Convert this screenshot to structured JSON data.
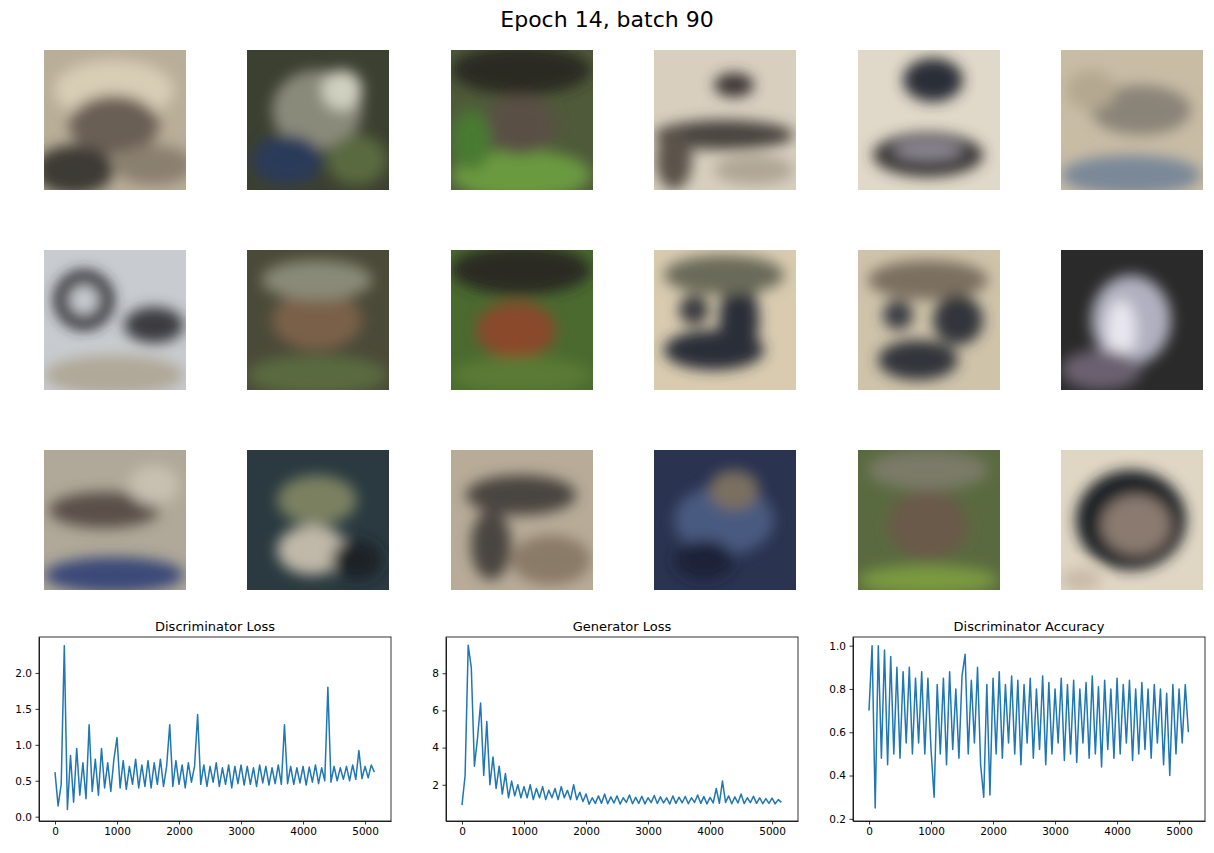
{
  "title": "Epoch 14, batch 90",
  "chart_data": [
    {
      "type": "line",
      "title": "Discriminator Loss",
      "color": "#1f77b4",
      "x": [
        0,
        50,
        100,
        150,
        200,
        250,
        300,
        350,
        400,
        450,
        500,
        550,
        600,
        650,
        700,
        750,
        800,
        850,
        900,
        950,
        1000,
        1050,
        1100,
        1150,
        1200,
        1250,
        1300,
        1350,
        1400,
        1450,
        1500,
        1550,
        1600,
        1650,
        1700,
        1750,
        1800,
        1850,
        1900,
        1950,
        2000,
        2050,
        2100,
        2150,
        2200,
        2250,
        2300,
        2350,
        2400,
        2450,
        2500,
        2550,
        2600,
        2650,
        2700,
        2750,
        2800,
        2850,
        2900,
        2950,
        3000,
        3050,
        3100,
        3150,
        3200,
        3250,
        3300,
        3350,
        3400,
        3450,
        3500,
        3550,
        3600,
        3650,
        3700,
        3750,
        3800,
        3850,
        3900,
        3950,
        4000,
        4050,
        4100,
        4150,
        4200,
        4250,
        4300,
        4350,
        4400,
        4450,
        4500,
        4550,
        4600,
        4650,
        4700,
        4750,
        4800,
        4850,
        4900,
        4950,
        5000,
        5050,
        5100,
        5150
      ],
      "values": [
        0.62,
        0.15,
        0.45,
        2.38,
        0.1,
        0.85,
        0.2,
        0.95,
        0.3,
        0.75,
        0.25,
        1.28,
        0.35,
        0.8,
        0.3,
        0.95,
        0.4,
        0.75,
        0.35,
        0.8,
        1.1,
        0.4,
        0.78,
        0.38,
        0.7,
        0.45,
        0.8,
        0.4,
        0.72,
        0.42,
        0.78,
        0.4,
        0.75,
        0.45,
        0.8,
        0.42,
        0.7,
        1.28,
        0.42,
        0.78,
        0.45,
        0.72,
        0.4,
        0.75,
        0.48,
        0.7,
        1.42,
        0.45,
        0.72,
        0.42,
        0.7,
        0.48,
        0.75,
        0.42,
        0.68,
        0.45,
        0.72,
        0.4,
        0.7,
        0.46,
        0.72,
        0.44,
        0.7,
        0.45,
        0.68,
        0.42,
        0.72,
        0.47,
        0.7,
        0.44,
        0.68,
        0.46,
        0.72,
        0.45,
        1.28,
        0.46,
        0.7,
        0.45,
        0.68,
        0.47,
        0.7,
        0.44,
        0.69,
        0.48,
        0.72,
        0.46,
        0.68,
        0.5,
        1.8,
        0.48,
        0.7,
        0.5,
        0.68,
        0.52,
        0.7,
        0.5,
        0.72,
        0.52,
        0.92,
        0.53,
        0.7,
        0.54,
        0.72,
        0.62
      ],
      "xlim": [
        -258,
        5418
      ],
      "ylim": [
        -0.06,
        2.5
      ],
      "xticks": [
        0,
        1000,
        2000,
        3000,
        4000,
        5000
      ],
      "yticks": [
        {
          "value": 0,
          "label": "0.0"
        },
        0.5,
        {
          "value": 1,
          "label": "1.0"
        },
        1.5,
        {
          "value": 2,
          "label": "2.0"
        }
      ]
    },
    {
      "type": "line",
      "title": "Generator Loss",
      "color": "#1f77b4",
      "x": [
        0,
        50,
        100,
        150,
        200,
        250,
        300,
        350,
        400,
        450,
        500,
        550,
        600,
        650,
        700,
        750,
        800,
        850,
        900,
        950,
        1000,
        1050,
        1100,
        1150,
        1200,
        1250,
        1300,
        1350,
        1400,
        1450,
        1500,
        1550,
        1600,
        1650,
        1700,
        1750,
        1800,
        1850,
        1900,
        1950,
        2000,
        2050,
        2100,
        2150,
        2200,
        2250,
        2300,
        2350,
        2400,
        2450,
        2500,
        2550,
        2600,
        2650,
        2700,
        2750,
        2800,
        2850,
        2900,
        2950,
        3000,
        3050,
        3100,
        3150,
        3200,
        3250,
        3300,
        3350,
        3400,
        3450,
        3500,
        3550,
        3600,
        3650,
        3700,
        3750,
        3800,
        3850,
        3900,
        3950,
        4000,
        4050,
        4100,
        4150,
        4200,
        4250,
        4300,
        4350,
        4400,
        4450,
        4500,
        4550,
        4600,
        4650,
        4700,
        4750,
        4800,
        4850,
        4900,
        4950,
        5000,
        5050,
        5100,
        5150
      ],
      "values": [
        0.9,
        2.5,
        9.5,
        8.3,
        3.0,
        4.5,
        6.4,
        2.5,
        5.4,
        2.0,
        3.5,
        1.8,
        3.0,
        1.5,
        2.6,
        1.3,
        2.2,
        1.4,
        2.0,
        1.3,
        1.9,
        1.3,
        2.0,
        1.2,
        1.8,
        1.3,
        1.9,
        1.2,
        1.7,
        1.3,
        1.8,
        1.2,
        1.9,
        1.3,
        1.7,
        1.2,
        2.0,
        1.2,
        1.6,
        1.1,
        1.5,
        0.95,
        1.3,
        1.0,
        1.4,
        1.0,
        1.5,
        0.98,
        1.35,
        1.02,
        1.4,
        0.96,
        1.3,
        1.05,
        1.45,
        0.98,
        1.32,
        1.0,
        1.38,
        0.97,
        1.3,
        1.04,
        1.42,
        0.99,
        1.35,
        1.02,
        1.3,
        0.96,
        1.4,
        1.0,
        1.33,
        1.03,
        1.37,
        0.98,
        1.3,
        1.05,
        1.45,
        1.0,
        1.36,
        0.97,
        1.32,
        1.02,
        1.8,
        1.0,
        2.2,
        1.05,
        1.4,
        0.98,
        1.35,
        1.02,
        1.5,
        0.99,
        1.3,
        1.04,
        1.38,
        1.0,
        1.3,
        0.98,
        1.25,
        1.0,
        1.28,
        0.97,
        1.2,
        1.05
      ],
      "xlim": [
        -258,
        5418
      ],
      "ylim": [
        0.05,
        9.95
      ],
      "xticks": [
        0,
        1000,
        2000,
        3000,
        4000,
        5000
      ],
      "yticks": [
        2,
        4,
        6,
        8
      ]
    },
    {
      "type": "line",
      "title": "Discriminator Accuracy",
      "color": "#1f77b4",
      "x": [
        0,
        50,
        100,
        150,
        200,
        250,
        300,
        350,
        400,
        450,
        500,
        550,
        600,
        650,
        700,
        750,
        800,
        850,
        900,
        950,
        1000,
        1050,
        1100,
        1150,
        1200,
        1250,
        1300,
        1350,
        1400,
        1450,
        1500,
        1550,
        1600,
        1650,
        1700,
        1750,
        1800,
        1850,
        1900,
        1950,
        2000,
        2050,
        2100,
        2150,
        2200,
        2250,
        2300,
        2350,
        2400,
        2450,
        2500,
        2550,
        2600,
        2650,
        2700,
        2750,
        2800,
        2850,
        2900,
        2950,
        3000,
        3050,
        3100,
        3150,
        3200,
        3250,
        3300,
        3350,
        3400,
        3450,
        3500,
        3550,
        3600,
        3650,
        3700,
        3750,
        3800,
        3850,
        3900,
        3950,
        4000,
        4050,
        4100,
        4150,
        4200,
        4250,
        4300,
        4350,
        4400,
        4450,
        4500,
        4550,
        4600,
        4650,
        4700,
        4750,
        4800,
        4850,
        4900,
        4950,
        5000,
        5050,
        5100,
        5150
      ],
      "values": [
        0.7,
        1.0,
        0.25,
        1.0,
        0.48,
        0.98,
        0.45,
        0.95,
        0.5,
        0.9,
        0.48,
        0.88,
        0.55,
        0.9,
        0.5,
        0.85,
        0.55,
        0.88,
        0.5,
        0.85,
        0.52,
        0.3,
        0.82,
        0.5,
        0.85,
        0.45,
        0.88,
        0.52,
        0.8,
        0.48,
        0.86,
        0.96,
        0.5,
        0.84,
        0.55,
        0.9,
        0.45,
        0.3,
        0.82,
        0.31,
        0.85,
        0.5,
        0.88,
        0.48,
        0.82,
        0.55,
        0.86,
        0.5,
        0.84,
        0.45,
        0.82,
        0.55,
        0.85,
        0.48,
        0.8,
        0.52,
        0.86,
        0.45,
        0.83,
        0.5,
        0.8,
        0.55,
        0.85,
        0.47,
        0.82,
        0.5,
        0.84,
        0.46,
        0.8,
        0.55,
        0.83,
        0.48,
        0.86,
        0.5,
        0.81,
        0.44,
        0.84,
        0.52,
        0.8,
        0.48,
        0.85,
        0.5,
        0.82,
        0.55,
        0.84,
        0.47,
        0.8,
        0.5,
        0.83,
        0.52,
        0.8,
        0.48,
        0.82,
        0.55,
        0.8,
        0.45,
        0.78,
        0.4,
        0.82,
        0.5,
        0.8,
        0.55,
        0.82,
        0.6
      ],
      "xlim": [
        -258,
        5418
      ],
      "ylim": [
        0.19,
        1.04
      ],
      "xticks": [
        0,
        1000,
        2000,
        3000,
        4000,
        5000
      ],
      "yticks": [
        0.2,
        0.4,
        0.6,
        0.8,
        {
          "value": 1,
          "label": "1.0"
        }
      ]
    }
  ]
}
